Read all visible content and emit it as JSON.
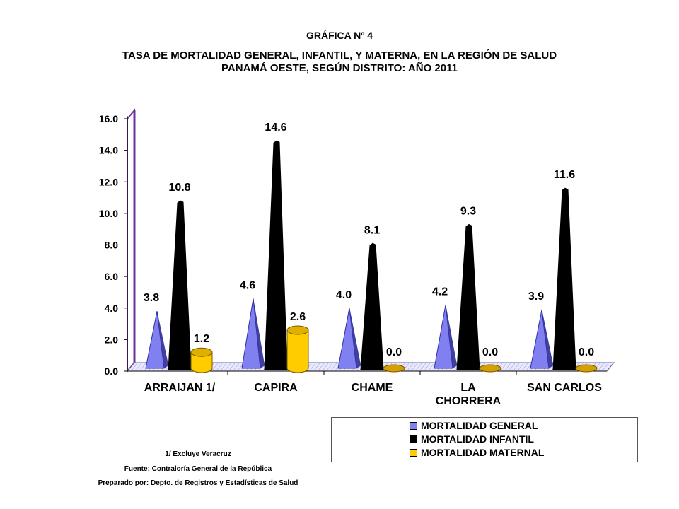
{
  "header": {
    "label": "GRÁFICA Nº 4",
    "title_line1": "TASA DE MORTALIDAD GENERAL, INFANTIL, Y MATERNA, EN LA REGIÓN DE SALUD",
    "title_line2": "PANAMÁ OESTE, SEGÚN DISTRITO: AÑO 2011"
  },
  "chart_data": {
    "type": "bar",
    "style": "3d-cones",
    "categories": [
      "ARRAIJAN 1/",
      "CAPIRA",
      "CHAME",
      "LA CHORRERA",
      "SAN CARLOS"
    ],
    "category_lines": [
      [
        "ARRAIJAN 1/"
      ],
      [
        "CAPIRA"
      ],
      [
        "CHAME"
      ],
      [
        "LA",
        "CHORRERA"
      ],
      [
        "SAN CARLOS"
      ]
    ],
    "series": [
      {
        "name": "MORTALIDAD GENERAL",
        "color": "#8080F0",
        "values": [
          3.8,
          4.6,
          4.0,
          4.2,
          3.9
        ]
      },
      {
        "name": "MORTALIDAD INFANTIL",
        "color": "#000000",
        "values": [
          10.8,
          14.6,
          8.1,
          9.3,
          11.6
        ]
      },
      {
        "name": "MORTALIDAD MATERNAL",
        "color": "#FFCC00",
        "values": [
          1.2,
          2.6,
          0.0,
          0.0,
          0.0
        ]
      }
    ],
    "value_labels": [
      [
        "3.8",
        "4.6",
        "4.0",
        "4.2",
        "3.9"
      ],
      [
        "10.8",
        "14.6",
        "8.1",
        "9.3",
        "11.6"
      ],
      [
        "1.2",
        "2.6",
        "0.0",
        "0.0",
        "0.0"
      ]
    ],
    "yticks": [
      "0.0",
      "2.0",
      "4.0",
      "6.0",
      "8.0",
      "10.0",
      "12.0",
      "14.0",
      "16.0"
    ],
    "ylim": [
      0,
      16
    ],
    "legend_position": "bottom-right",
    "grid": false
  },
  "footer": {
    "note": "1/ Excluye Veracruz",
    "source": "Fuente: Contraloría General de la República",
    "prepared": "Preparado por: Depto. de Registros y Estadísticas de Salud"
  }
}
